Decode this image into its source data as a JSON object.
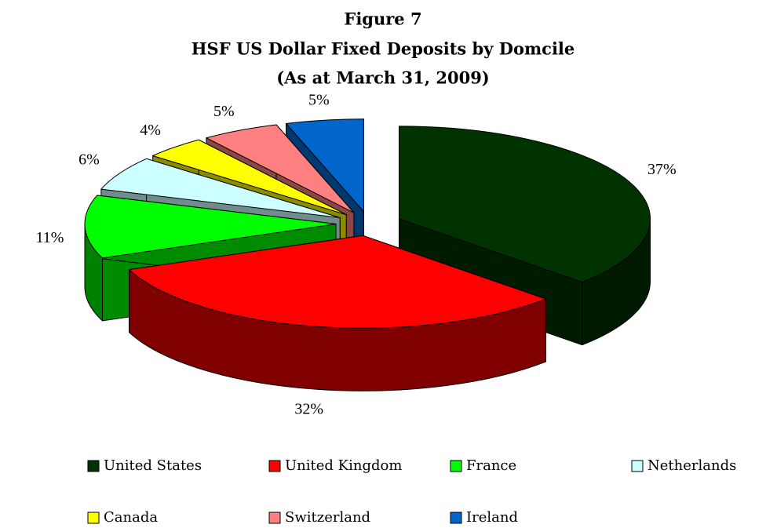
{
  "chart_data": {
    "type": "pie3d",
    "title": [
      "Figure 7",
      "HSF US Dollar Fixed Deposits by Domcile",
      "(As at March 31, 2009)"
    ],
    "categories": [
      "United States",
      "United Kingdom",
      "France",
      "Netherlands",
      "Canada",
      "Switzerland",
      "Ireland"
    ],
    "values": [
      37,
      32,
      11,
      6,
      4,
      5,
      5
    ],
    "value_labels": [
      "37%",
      "32%",
      "11%",
      "6%",
      "4%",
      "5%",
      "5%"
    ],
    "colors": [
      "#003300",
      "#ff0000",
      "#00ff00",
      "#ccffff",
      "#ffff00",
      "#ff8080",
      "#0066cc"
    ]
  }
}
